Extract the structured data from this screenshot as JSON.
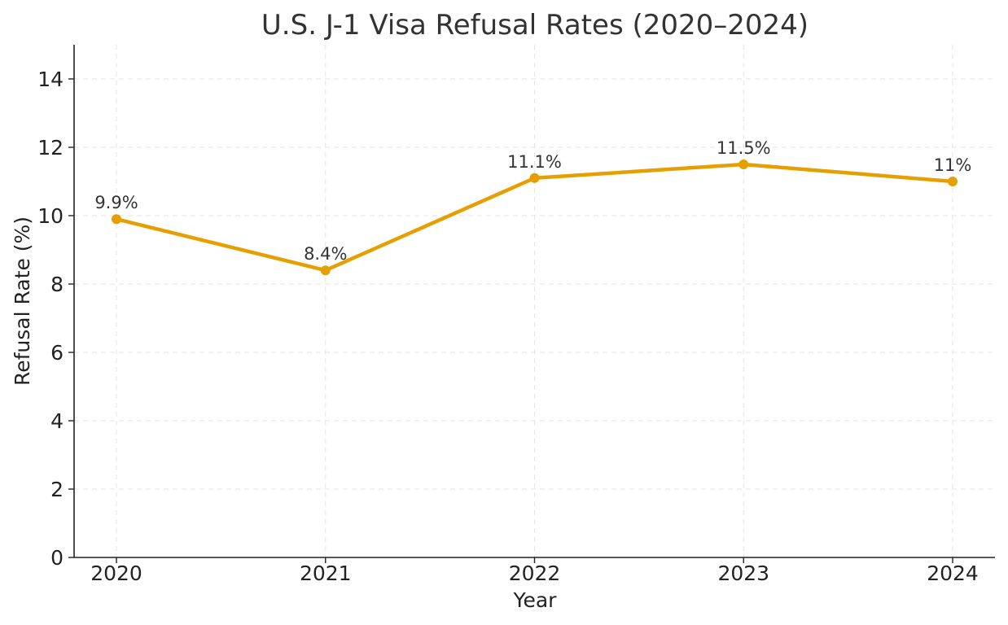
{
  "chart_data": {
    "type": "line",
    "title": "U.S. J-1 Visa Refusal Rates (2020–2024)",
    "xlabel": "Year",
    "ylabel": "Refusal Rate (%)",
    "categories": [
      "2020",
      "2021",
      "2022",
      "2023",
      "2024"
    ],
    "y_ticks": [
      "0",
      "2",
      "4",
      "6",
      "8",
      "10",
      "12",
      "14"
    ],
    "ylim": [
      0,
      15
    ],
    "grid": true,
    "series": [
      {
        "values": [
          9.9,
          8.4,
          11.1,
          11.5,
          11.0
        ],
        "data_labels": [
          "9.9%",
          "8.4%",
          "11.1%",
          "11.5%",
          "11%"
        ],
        "color": "#e69f00"
      }
    ]
  }
}
